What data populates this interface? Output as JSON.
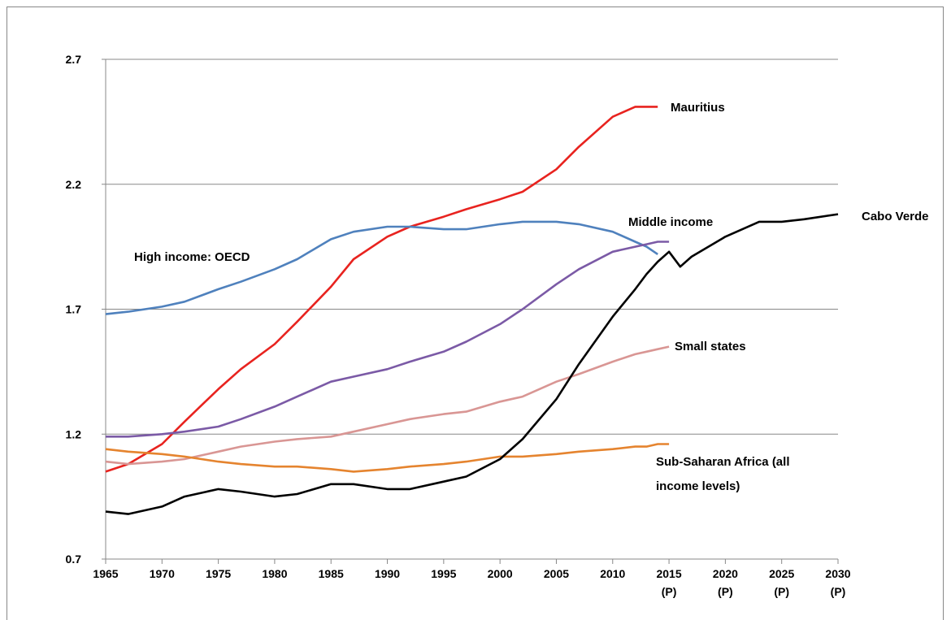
{
  "chart_data": {
    "type": "line",
    "x": [
      1965,
      1967,
      1970,
      1972,
      1975,
      1977,
      1980,
      1982,
      1985,
      1987,
      1990,
      1992,
      1995,
      1997,
      2000,
      2002,
      2005,
      2007,
      2010,
      2012,
      2013,
      2014,
      2015,
      2016,
      2017,
      2020,
      2023,
      2025,
      2027,
      2030
    ],
    "series": [
      {
        "name": "Mauritius",
        "color": "#e8231f",
        "values": [
          1.05,
          1.08,
          1.16,
          1.25,
          1.38,
          1.46,
          1.56,
          1.65,
          1.79,
          1.9,
          1.99,
          2.03,
          2.07,
          2.1,
          2.14,
          2.17,
          2.26,
          2.35,
          2.47,
          2.51,
          2.51,
          2.51,
          null,
          null,
          null,
          null,
          null,
          null,
          null,
          null
        ]
      },
      {
        "name": "High income: OECD",
        "color": "#4f81bd",
        "values": [
          1.68,
          1.69,
          1.71,
          1.73,
          1.78,
          1.81,
          1.86,
          1.9,
          1.98,
          2.01,
          2.03,
          2.03,
          2.02,
          2.02,
          2.04,
          2.05,
          2.05,
          2.04,
          2.01,
          1.97,
          1.95,
          1.92,
          null,
          null,
          null,
          null,
          null,
          null,
          null,
          null
        ]
      },
      {
        "name": "Middle income",
        "color": "#7b5aa6",
        "values": [
          1.19,
          1.19,
          1.2,
          1.21,
          1.23,
          1.26,
          1.31,
          1.35,
          1.41,
          1.43,
          1.46,
          1.49,
          1.53,
          1.57,
          1.64,
          1.7,
          1.8,
          1.86,
          1.93,
          1.95,
          1.96,
          1.97,
          1.97,
          null,
          null,
          null,
          null,
          null,
          null,
          null
        ]
      },
      {
        "name": "Small states",
        "color": "#d99694",
        "values": [
          1.09,
          1.08,
          1.09,
          1.1,
          1.13,
          1.15,
          1.17,
          1.18,
          1.19,
          1.21,
          1.24,
          1.26,
          1.28,
          1.29,
          1.33,
          1.35,
          1.41,
          1.44,
          1.49,
          1.52,
          1.53,
          1.54,
          1.55,
          null,
          null,
          null,
          null,
          null,
          null,
          null
        ]
      },
      {
        "name": "Sub-Saharan Africa (all income levels)",
        "color": "#e5842f",
        "values": [
          1.14,
          1.13,
          1.12,
          1.11,
          1.09,
          1.08,
          1.07,
          1.07,
          1.06,
          1.05,
          1.06,
          1.07,
          1.08,
          1.09,
          1.11,
          1.11,
          1.12,
          1.13,
          1.14,
          1.15,
          1.15,
          1.16,
          1.16,
          null,
          null,
          null,
          null,
          null,
          null,
          null
        ]
      },
      {
        "name": "Cabo Verde",
        "color": "#000000",
        "values": [
          0.89,
          0.88,
          0.91,
          0.95,
          0.98,
          0.97,
          0.95,
          0.96,
          1.0,
          1.0,
          0.98,
          0.98,
          1.01,
          1.03,
          1.1,
          1.18,
          1.34,
          1.48,
          1.67,
          1.78,
          1.84,
          1.89,
          1.93,
          1.87,
          1.91,
          1.99,
          2.05,
          2.05,
          2.06,
          2.08
        ]
      }
    ],
    "xlim": [
      1965,
      2030
    ],
    "xticks": [
      1965,
      1970,
      1975,
      1980,
      1985,
      1990,
      1995,
      2000,
      2005,
      2010,
      {
        "value": 2015,
        "label": "2015 (P)"
      },
      {
        "value": 2020,
        "label": "2020 (P)"
      },
      {
        "value": 2025,
        "label": "2025 (P)"
      },
      {
        "value": 2030,
        "label": "2030 (P)"
      }
    ],
    "ylim": [
      0.7,
      2.7
    ],
    "yticks": [
      0.7,
      1.2,
      1.7,
      2.2,
      2.7
    ],
    "grid": true
  }
}
